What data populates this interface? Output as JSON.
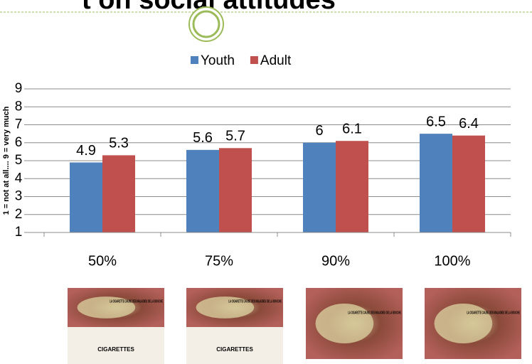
{
  "chart_data": {
    "type": "bar",
    "title": "t on social attitudes",
    "y_label": "1 = not at all.... 9 = very much",
    "categories": [
      "50%",
      "75%",
      "90%",
      "100%"
    ],
    "series": [
      {
        "name": "Youth",
        "color": "#4f81bd",
        "values": [
          4.9,
          5.6,
          6,
          6.5
        ]
      },
      {
        "name": "Adult",
        "color": "#c0504d",
        "values": [
          5.3,
          5.7,
          6.1,
          6.4
        ]
      }
    ],
    "ylim": [
      1,
      9
    ],
    "yticks": [
      1,
      2,
      3,
      4,
      5,
      6,
      7,
      8,
      9
    ],
    "grid": true,
    "legend": "top"
  },
  "images": [
    {
      "warning": "LA CIGARETTE CAUSE DES MALADIES DE LA BOUCHE",
      "brand": "CIGARETTES"
    },
    {
      "warning": "LA CIGARETTE CAUSE DES MALADIES DE LA BOUCHE",
      "brand": "CIGARETTES"
    },
    {
      "warning": "LA CIGARETTE CAUSE DES MALADIES DE LA BOUCHE"
    },
    {
      "warning": "LA CIGARETTE CAUSE DES MALADIES DE LA BOUCHE"
    }
  ]
}
